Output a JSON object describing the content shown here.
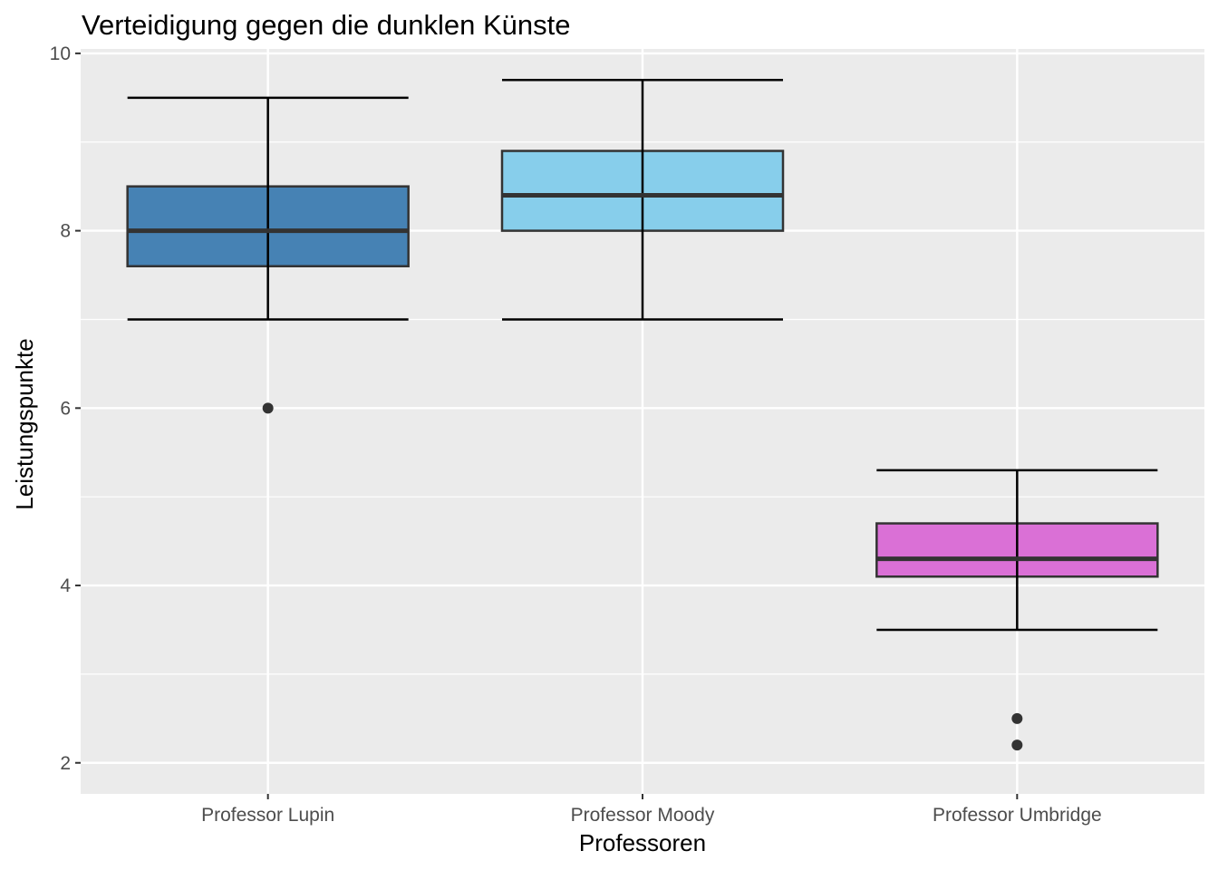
{
  "chart_data": {
    "type": "boxplot",
    "title": "Verteidigung gegen die dunklen Künste",
    "xlabel": "Professoren",
    "ylabel": "Leistungspunkte",
    "ylim": [
      1.65,
      10.05
    ],
    "yticks": [
      "2",
      "4",
      "6",
      "8",
      "10"
    ],
    "grid": true,
    "legend": "none",
    "categories": [
      "Professor Lupin",
      "Professor Moody",
      "Professor Umbridge"
    ],
    "boxes": [
      {
        "category": "Professor Lupin",
        "q1": 7.6,
        "median": 8.0,
        "q3": 8.5,
        "whisker_low": 7.0,
        "whisker_high": 9.5,
        "outliers": [
          6.0
        ],
        "color": "#4682B4"
      },
      {
        "category": "Professor Moody",
        "q1": 8.0,
        "median": 8.4,
        "q3": 8.9,
        "whisker_low": 7.0,
        "whisker_high": 9.7,
        "outliers": [],
        "color": "#87CEEB"
      },
      {
        "category": "Professor Umbridge",
        "q1": 4.1,
        "median": 4.3,
        "q3": 4.7,
        "whisker_low": 3.5,
        "whisker_high": 5.3,
        "outliers": [
          2.5,
          2.2
        ],
        "color": "#DA70D6"
      }
    ],
    "colors": {
      "panel": "#EBEBEB",
      "grid": "#FFFFFF",
      "box_outline": "#333333",
      "whisker": "#000000",
      "outlier": "#333333"
    }
  }
}
